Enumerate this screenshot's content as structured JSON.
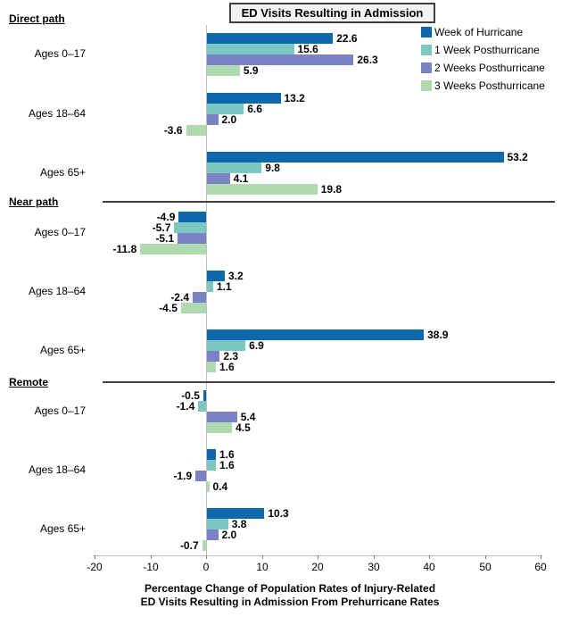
{
  "colors": {
    "series": [
      "#0D68AC",
      "#7CC8C1",
      "#7B82C6",
      "#AFDAB0"
    ],
    "axis_line": "#BFBFBF",
    "tick_mark": "#808080",
    "separator": "#404040",
    "title_box_bg": "#F2F2F2",
    "title_box_border": "#404040"
  },
  "legend": {
    "position": "top-right",
    "items": [
      {
        "label": "Week of Hurricane",
        "color": "#0D68AC"
      },
      {
        "label": "1 Week Posthurricane",
        "color": "#7CC8C1"
      },
      {
        "label": "2 Weeks Posthurricane",
        "color": "#7B82C6"
      },
      {
        "label": "3 Weeks Posthurricane",
        "color": "#AFDAB0"
      }
    ]
  },
  "chart_data": {
    "type": "bar",
    "orientation": "horizontal",
    "title": "ED Visits Resulting in Admission",
    "xlabel_lines": [
      "Percentage Change of Population Rates of Injury-Related",
      "ED Visits Resulting in Admission From Prehurricane Rates"
    ],
    "xlim": [
      -20,
      60
    ],
    "xticks": [
      -20,
      -10,
      0,
      10,
      20,
      30,
      40,
      50,
      60
    ],
    "grid": false,
    "legend_position": "top-right",
    "series": [
      "Week of Hurricane",
      "1 Week Posthurricane",
      "2 Weeks Posthurricane",
      "3 Weeks Posthurricane"
    ],
    "value_label_decimals": 1,
    "sections": [
      {
        "label": "Direct path",
        "groups": [
          {
            "label": "Ages 0–17",
            "values": [
              22.6,
              15.6,
              26.3,
              5.9
            ]
          },
          {
            "label": "Ages 18–64",
            "values": [
              13.2,
              6.6,
              2.0,
              -3.6
            ]
          },
          {
            "label": "Ages 65+",
            "values": [
              53.2,
              9.8,
              4.1,
              19.8
            ]
          }
        ]
      },
      {
        "label": "Near path",
        "groups": [
          {
            "label": "Ages 0–17",
            "values": [
              -4.9,
              -5.7,
              -5.1,
              -11.8
            ]
          },
          {
            "label": "Ages 18–64",
            "values": [
              3.2,
              1.1,
              -2.4,
              -4.5
            ]
          },
          {
            "label": "Ages 65+",
            "values": [
              38.9,
              6.9,
              2.3,
              1.6
            ]
          }
        ]
      },
      {
        "label": "Remote",
        "groups": [
          {
            "label": "Ages 0–17",
            "values": [
              -0.5,
              -1.4,
              5.4,
              4.5
            ]
          },
          {
            "label": "Ages 18–64",
            "values": [
              1.6,
              1.6,
              -1.9,
              0.4
            ]
          },
          {
            "label": "Ages 65+",
            "values": [
              10.3,
              3.8,
              2.0,
              -0.7
            ]
          }
        ]
      }
    ]
  }
}
